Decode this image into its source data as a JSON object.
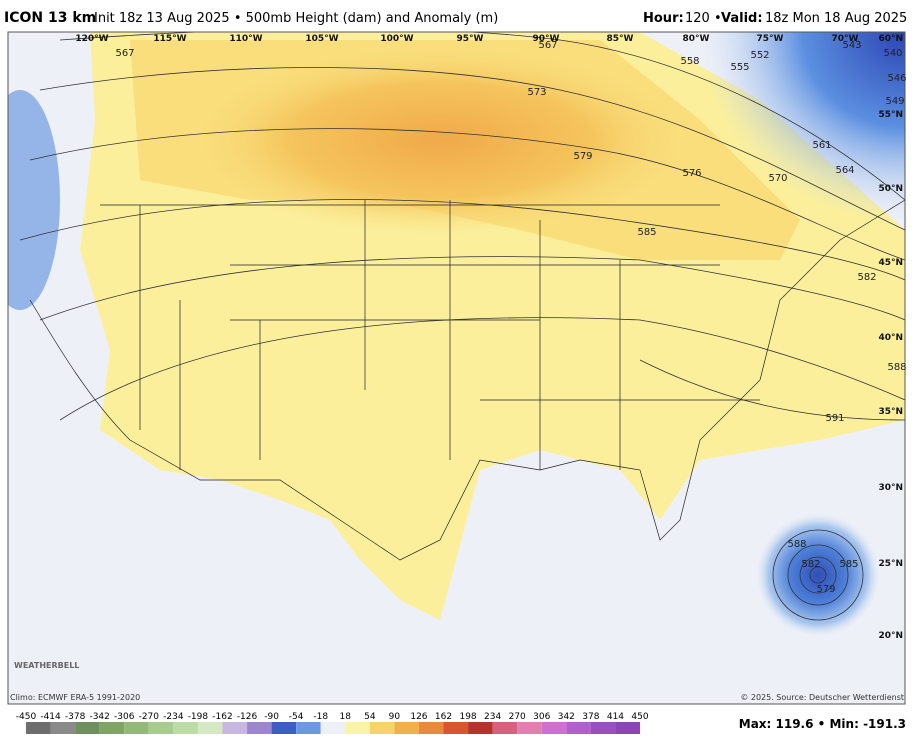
{
  "header": {
    "model": "ICON 13 km",
    "description": "Init 18z 13 Aug 2025 • 500mb Height (dam) and Anomaly (m)",
    "hour_label": "Hour:",
    "hour_value": "120 •",
    "valid_label": "Valid:",
    "valid_value": "18z Mon 18 Aug 2025"
  },
  "map": {
    "lon_labels": [
      "120°W",
      "115°W",
      "110°W",
      "105°W",
      "100°W",
      "95°W",
      "90°W",
      "85°W",
      "80°W",
      "75°W",
      "70°W"
    ],
    "lat_labels": [
      "60°N",
      "55°N",
      "50°N",
      "45°N",
      "40°N",
      "35°N",
      "30°N",
      "25°N",
      "20°N"
    ],
    "contour_labels": [
      "567",
      "567",
      "558",
      "555",
      "552",
      "573",
      "579",
      "576",
      "570",
      "561",
      "564",
      "585",
      "588",
      "591",
      "588",
      "582",
      "585",
      "579",
      "543",
      "540",
      "546",
      "549",
      "582"
    ],
    "logo": "WEATHERBELL"
  },
  "footer": {
    "climo": "Climo: ECMWF ERA-5 1991-2020",
    "source": "© 2025. Source: Deutscher Wetterdienst",
    "stats": "Max: 119.6 • Min: -191.3"
  },
  "colorbar": {
    "ticks": [
      "-450",
      "-414",
      "-378",
      "-342",
      "-306",
      "-270",
      "-234",
      "-198",
      "-162",
      "-126",
      "-90",
      "-54",
      "-18",
      "18",
      "54",
      "90",
      "126",
      "162",
      "198",
      "234",
      "270",
      "306",
      "342",
      "378",
      "414",
      "450"
    ],
    "colors": [
      "#6e6e6e",
      "#8a8a8a",
      "#6f8f5e",
      "#7fa466",
      "#93b97a",
      "#a8cc8e",
      "#bcdca6",
      "#d3e8c3",
      "#c7b6e2",
      "#9d86cf",
      "#3d5fc4",
      "#6b98e0",
      "#eef0f7",
      "#fbf3a8",
      "#f7d46a",
      "#f1b04c",
      "#e88a3c",
      "#d9552f",
      "#b4332c",
      "#d6607e",
      "#e27fb0",
      "#cf6fcf",
      "#b05fcc",
      "#9a4fc0",
      "#8a44b4"
    ]
  }
}
